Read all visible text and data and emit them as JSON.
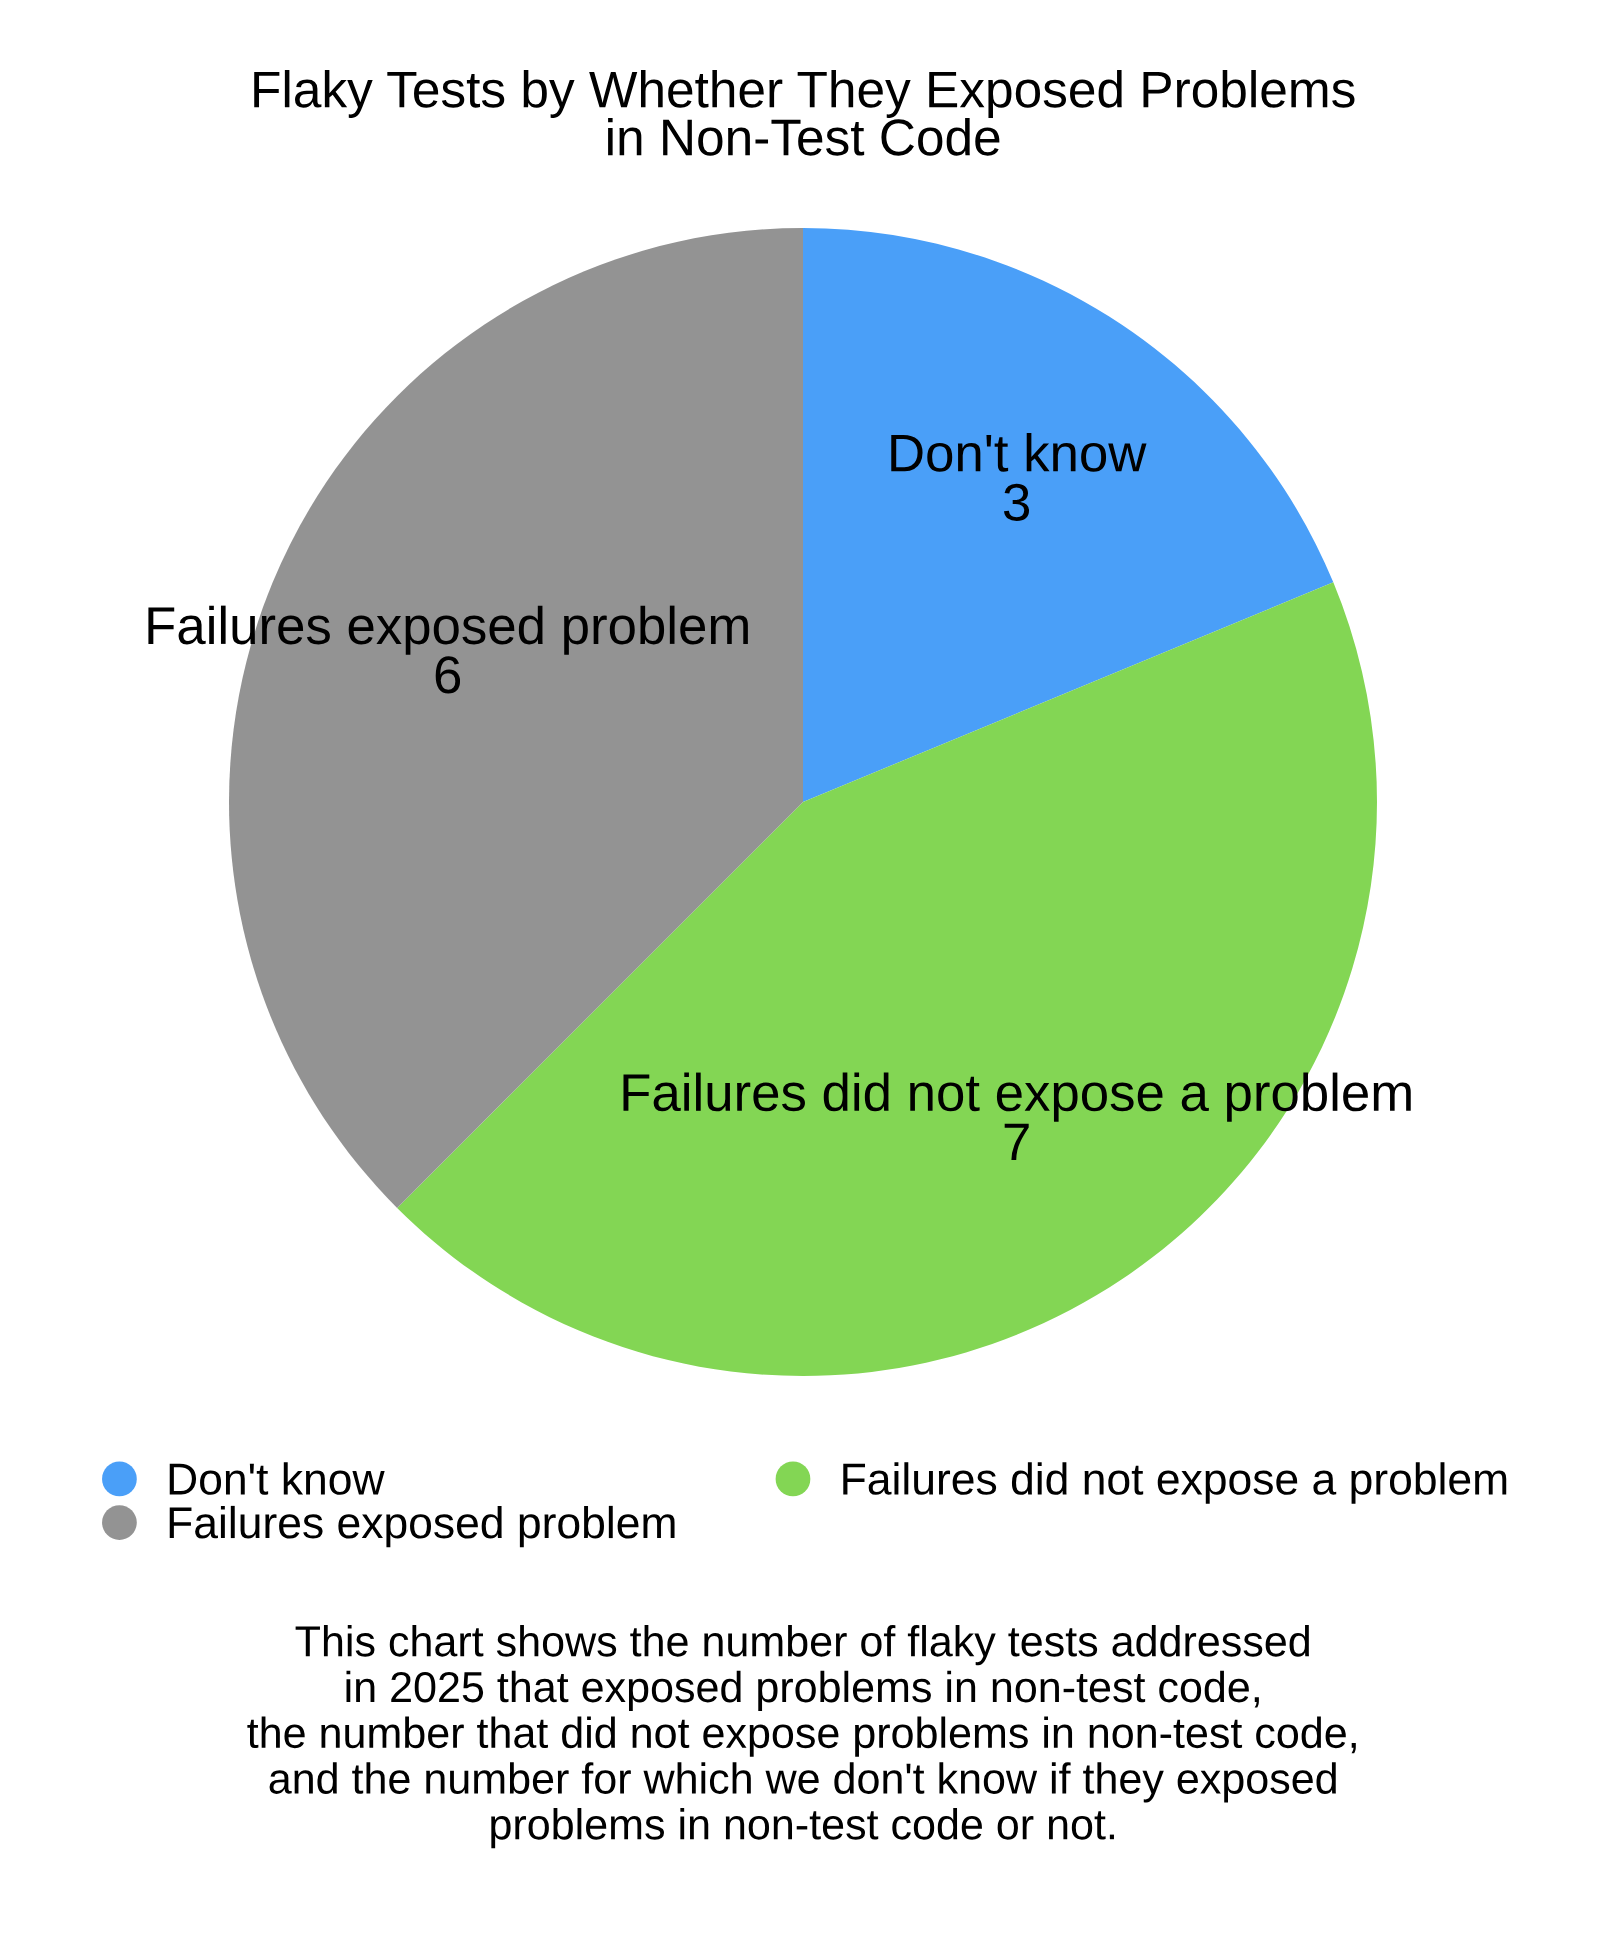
{
  "chart_data": {
    "type": "pie",
    "title": "Flaky Tests by Whether They Exposed Problems\nin Non-Test Code",
    "categories": [
      "Don't know",
      "Failures did not expose a problem",
      "Failures exposed problem"
    ],
    "values": [
      3,
      7,
      6
    ],
    "colors": [
      "#4a9ff8",
      "#83d654",
      "#939393"
    ],
    "data_labels": true,
    "legend": "bottom",
    "annotations": [
      "This chart shows the number of flaky tests addressed\nin 2025 that exposed problems in non-test code,\nthe number that did not expose problems in non-test code,\nand the number for which we don't know if they exposed\nproblems in non-test code or not."
    ]
  }
}
